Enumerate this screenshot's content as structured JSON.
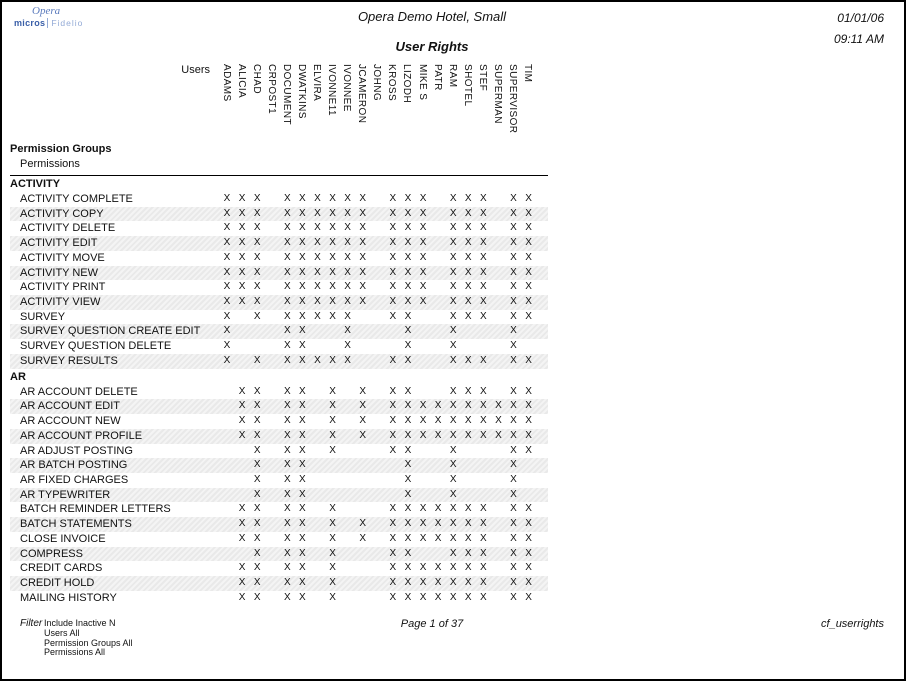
{
  "page": {
    "logo": {
      "line1": "Opera",
      "brand_bold": "micros",
      "brand_light": "Fidelio",
      "color": "#4a6fb0"
    },
    "header": {
      "hotel": "Opera Demo Hotel, Small",
      "report_title": "User Rights",
      "date": "01/01/06",
      "time": "09:11 AM"
    },
    "columns": {
      "users_label": "Users",
      "users": [
        "ADAMS",
        "ALICIA",
        "CHAD",
        "CRPOST1",
        "DOCUMENT",
        "DWATKINS",
        "ELVIRA",
        "IVONNE11",
        "IVONNEE",
        "JCAMERON",
        "JOHNG",
        "KROSS",
        "LIZODH",
        "MIKE S",
        "PATR",
        "RAM",
        "SHOTEL",
        "STEF",
        "SUPERMAN",
        "SUPERVISOR",
        "TIM"
      ]
    },
    "table": {
      "group_header": "Permission Groups",
      "sub_header": "Permissions",
      "mark": "X",
      "sections": [
        {
          "name": "ACTIVITY",
          "rows": [
            {
              "label": "ACTIVITY COMPLETE",
              "pattern": "111011111101110111011"
            },
            {
              "label": "ACTIVITY COPY",
              "pattern": "111011111101110111011"
            },
            {
              "label": "ACTIVITY DELETE",
              "pattern": "111011111101110111011"
            },
            {
              "label": "ACTIVITY EDIT",
              "pattern": "111011111101110111011"
            },
            {
              "label": "ACTIVITY MOVE",
              "pattern": "111011111101110111011"
            },
            {
              "label": "ACTIVITY NEW",
              "pattern": "111011111101110111011"
            },
            {
              "label": "ACTIVITY PRINT",
              "pattern": "111011111101110111011"
            },
            {
              "label": "ACTIVITY VIEW",
              "pattern": "111011111101110111011"
            },
            {
              "label": "SURVEY",
              "pattern": "101011111001100111011"
            },
            {
              "label": "SURVEY QUESTION CREATE EDIT",
              "pattern": "100011001000100100010"
            },
            {
              "label": "SURVEY QUESTION DELETE",
              "pattern": "100011001000100100010"
            },
            {
              "label": "SURVEY RESULTS",
              "pattern": "101011111001100111011"
            }
          ]
        },
        {
          "name": "AR",
          "rows": [
            {
              "label": "AR ACCOUNT DELETE",
              "pattern": "011011010101100111011"
            },
            {
              "label": "AR ACCOUNT EDIT",
              "pattern": "011011010101111111111"
            },
            {
              "label": "AR ACCOUNT NEW",
              "pattern": "011011010101111111111"
            },
            {
              "label": "AR ACCOUNT PROFILE",
              "pattern": "011011010101111111111"
            },
            {
              "label": "AR ADJUST POSTING",
              "pattern": "001011010001100100011"
            },
            {
              "label": "AR BATCH POSTING",
              "pattern": "001011000000100100010"
            },
            {
              "label": "AR FIXED CHARGES",
              "pattern": "001011000000100100010"
            },
            {
              "label": "AR TYPEWRITER",
              "pattern": "001011000000100100010"
            },
            {
              "label": "BATCH REMINDER LETTERS",
              "pattern": "011011010001111111011"
            },
            {
              "label": "BATCH STATEMENTS",
              "pattern": "011011010101111111011"
            },
            {
              "label": "CLOSE INVOICE",
              "pattern": "011011010101111111011"
            },
            {
              "label": "COMPRESS",
              "pattern": "001011010001100111011"
            },
            {
              "label": "CREDIT CARDS",
              "pattern": "011011010001111111011"
            },
            {
              "label": "CREDIT HOLD",
              "pattern": "011011010001111111011"
            },
            {
              "label": "MAILING HISTORY",
              "pattern": "011011010001111111011"
            }
          ]
        }
      ]
    },
    "footer": {
      "filter_label": "Filter",
      "filter_lines": [
        "Include Inactive N",
        "Users All",
        "Permission Groups All",
        "Permissions All"
      ],
      "page_text": "Page 1 of 37",
      "report_id": "cf_userrights"
    }
  }
}
